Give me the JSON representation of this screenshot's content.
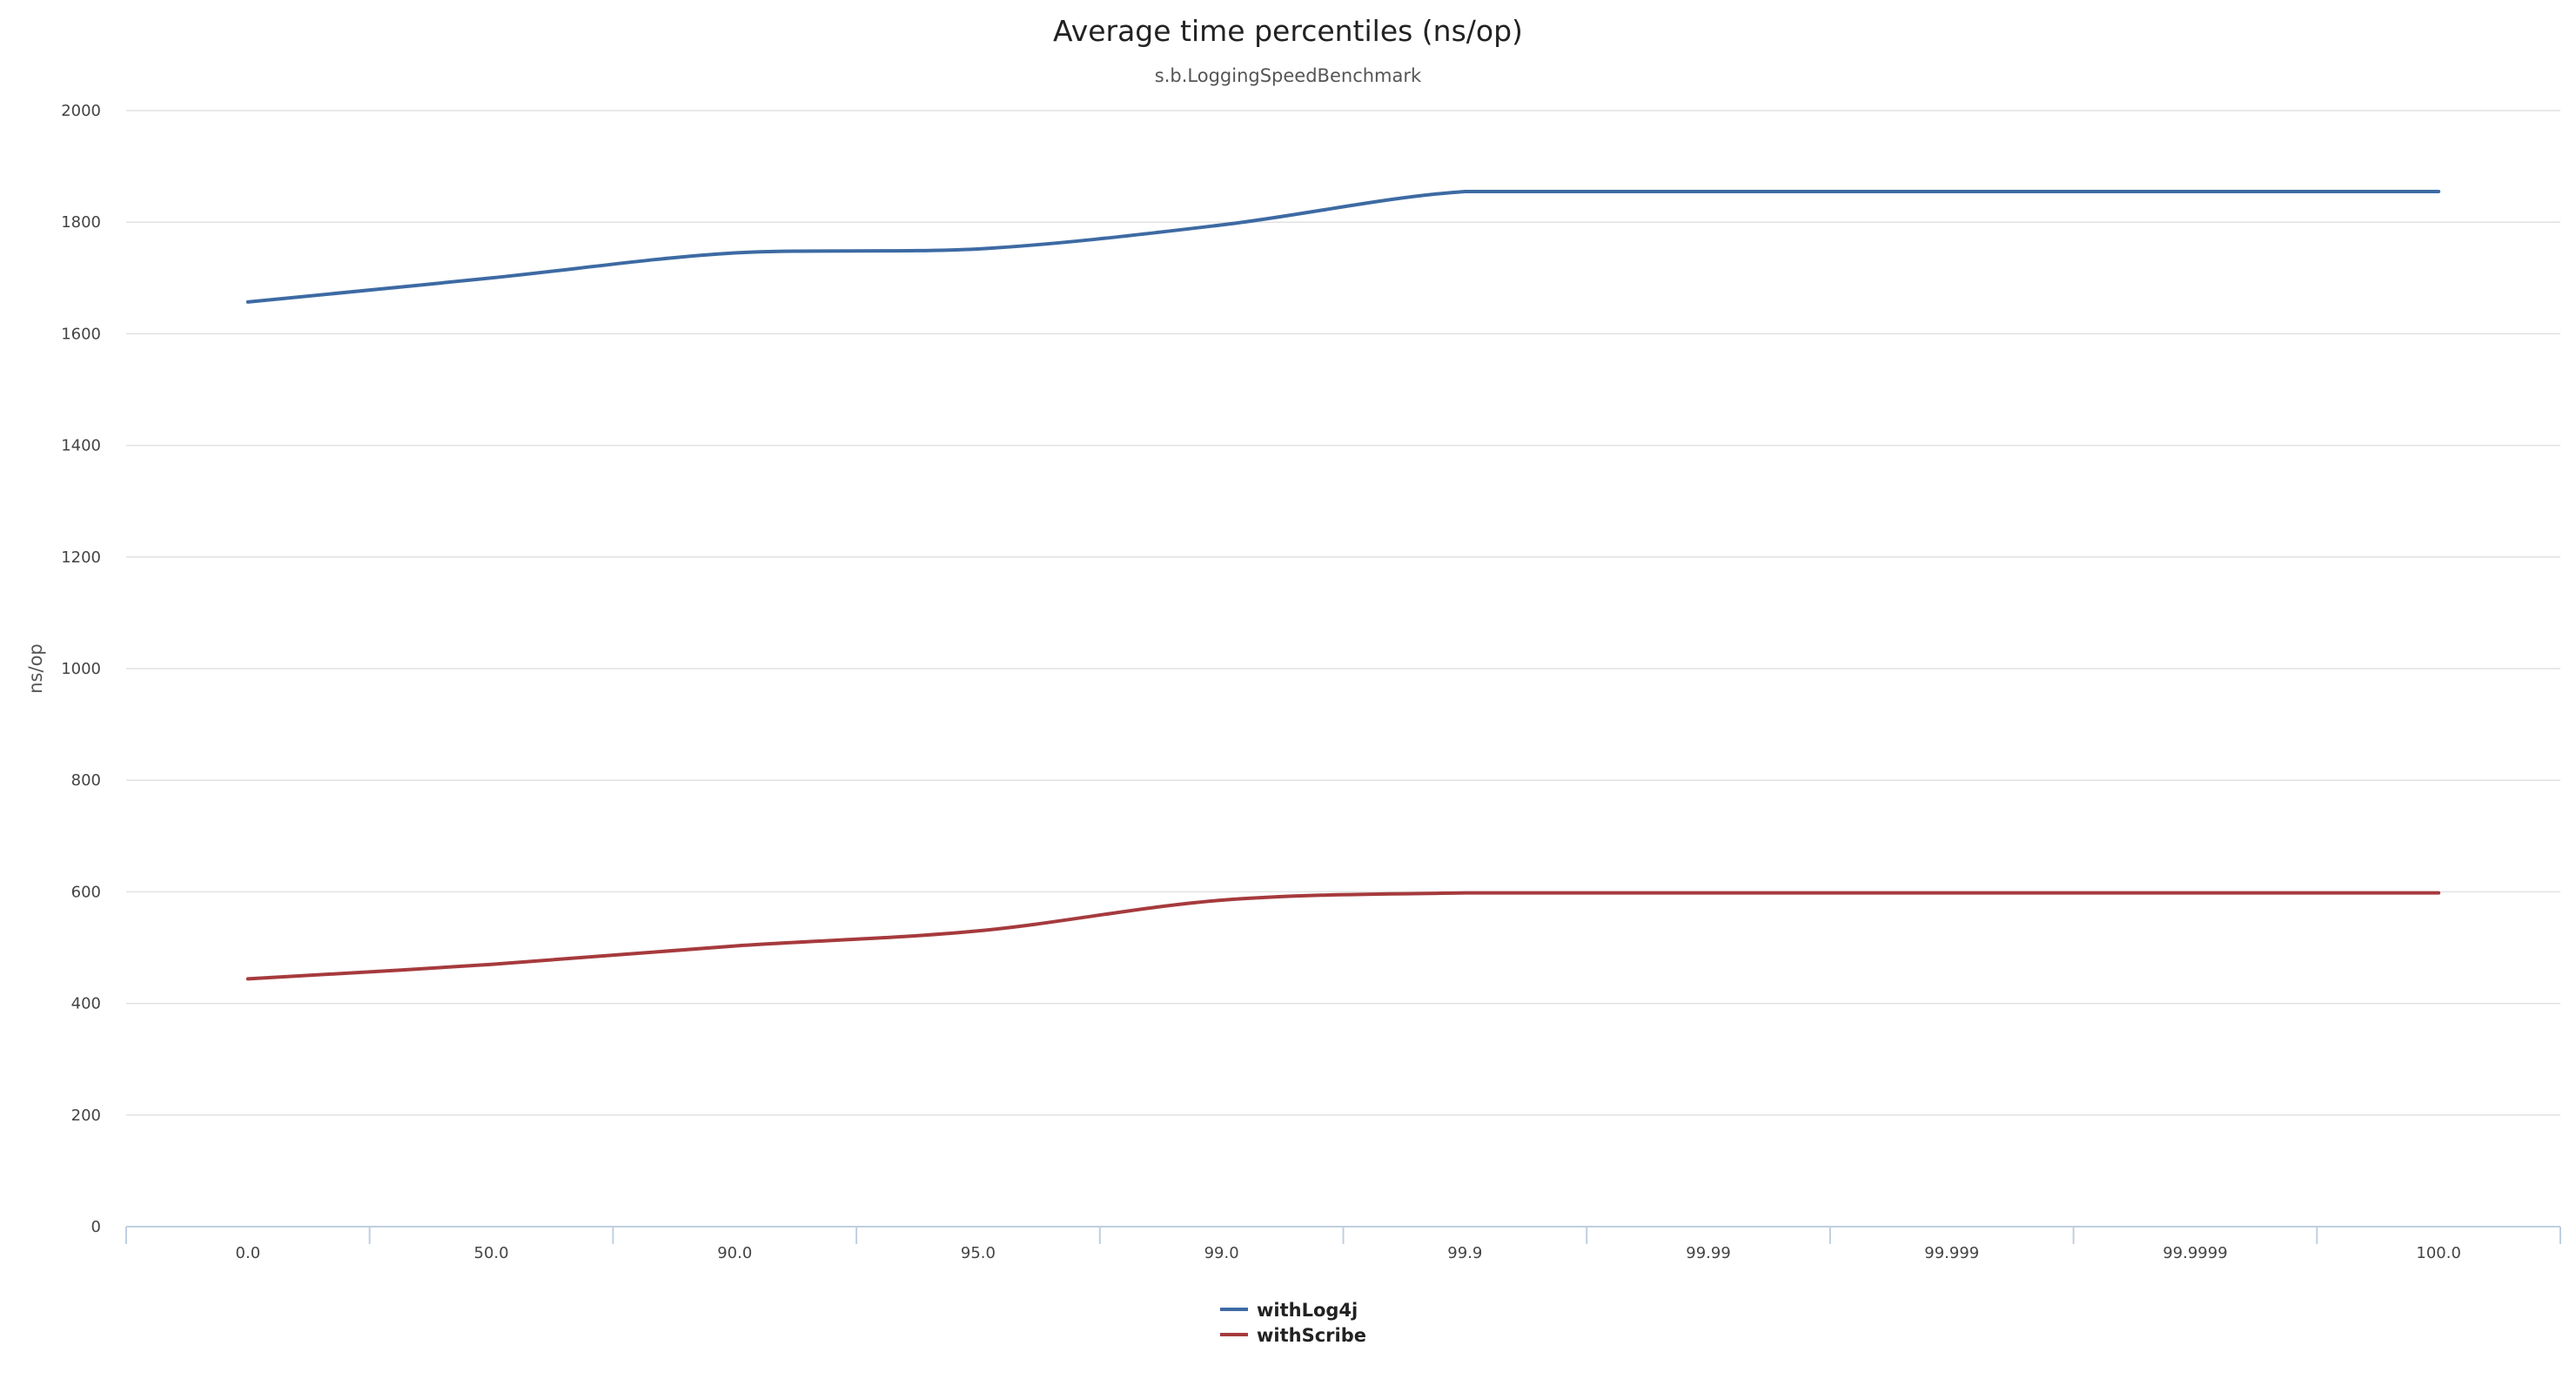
{
  "chart_data": {
    "type": "line",
    "title": "Average time percentiles (ns/op)",
    "subtitle": "s.b.LoggingSpeedBenchmark",
    "xlabel": "",
    "ylabel": "ns/op",
    "ylim": [
      0,
      2000
    ],
    "yticks": [
      0,
      200,
      400,
      600,
      800,
      1000,
      1200,
      1400,
      1600,
      1800,
      2000
    ],
    "categories": [
      "0.0",
      "50.0",
      "90.0",
      "95.0",
      "99.0",
      "99.9",
      "99.99",
      "99.999",
      "99.9999",
      "100.0"
    ],
    "series": [
      {
        "name": "withLog4j",
        "color": "#3d6aa3",
        "values": [
          1657,
          1700,
          1745,
          1752,
          1795,
          1855,
          1855,
          1855,
          1855,
          1855
        ]
      },
      {
        "name": "withScribe",
        "color": "#a63a3d",
        "values": [
          444,
          470,
          503,
          530,
          585,
          598,
          598,
          598,
          598,
          598
        ]
      }
    ],
    "grid": true,
    "legend_position": "bottom-center"
  }
}
